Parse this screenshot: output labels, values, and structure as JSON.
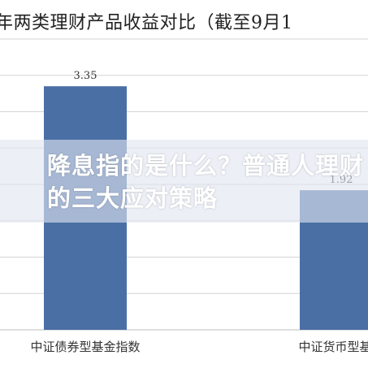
{
  "overlay": {
    "headline": "降息指的是什么？普通人理财的三大应对策略"
  },
  "colors": {
    "bar": "#4a6fa5",
    "grid": "#d4d4d4",
    "axis": "#bfbfbf",
    "overlay_band": "#e1e5f0"
  },
  "chart_data": {
    "type": "bar",
    "title": "年两类理财产品收益对比（截至9月1",
    "categories": [
      "中证债券型基金指数",
      "中证货币型基金"
    ],
    "values": [
      3.35,
      1.92
    ],
    "data_labels": [
      "3.35",
      "1.92"
    ],
    "ylim": [
      0,
      4
    ],
    "grid": true,
    "legend": "none"
  }
}
